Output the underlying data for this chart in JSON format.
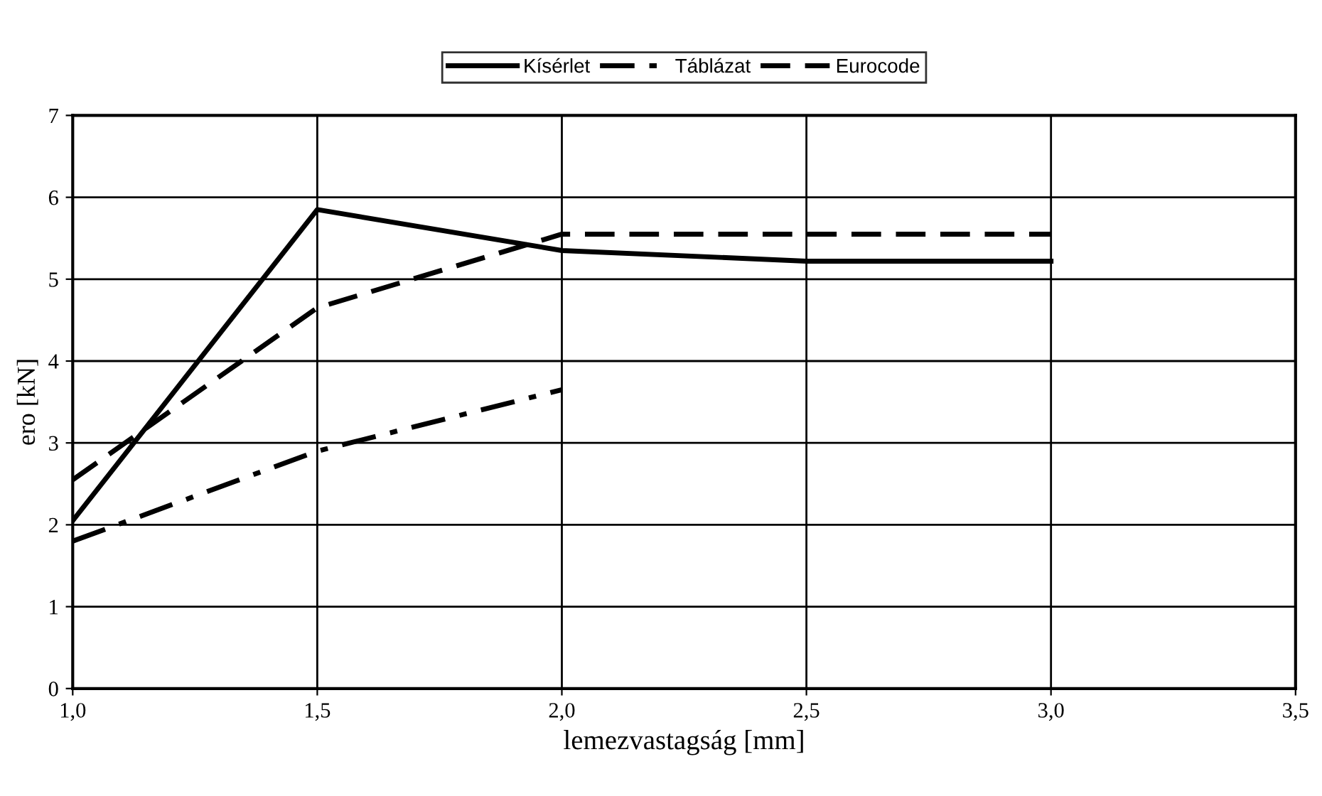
{
  "chart_data": {
    "type": "line",
    "xlabel": "lemezvastagság [mm]",
    "ylabel": "ero [kN]",
    "x": [
      1.0,
      1.5,
      2.0,
      2.5,
      3.0
    ],
    "series": [
      {
        "name": "Kísérlet",
        "color": "#000000",
        "line_style": "solid",
        "values": [
          2.05,
          5.85,
          5.35,
          5.22,
          5.22
        ]
      },
      {
        "name": "Táblázat",
        "color": "#000000",
        "line_style": "dashdot",
        "values": [
          1.8,
          2.9,
          3.65,
          null,
          null
        ]
      },
      {
        "name": "Eurocode",
        "color": "#000000",
        "line_style": "dashed",
        "values": [
          2.55,
          4.65,
          5.55,
          5.55,
          5.55
        ]
      }
    ],
    "xlim": [
      1.0,
      3.5
    ],
    "xticks": [
      {
        "value": 1.0,
        "label": "1,0"
      },
      {
        "value": 1.5,
        "label": "1,5"
      },
      {
        "value": 2.0,
        "label": "2,0"
      },
      {
        "value": 2.5,
        "label": "2,5"
      },
      {
        "value": 3.0,
        "label": "3,0"
      },
      {
        "value": 3.5,
        "label": "3,5"
      }
    ],
    "ylim": [
      0,
      7
    ],
    "yticks": [
      0,
      1,
      2,
      3,
      4,
      5,
      6,
      7
    ],
    "grid": true,
    "legend": "top",
    "marker": "none"
  }
}
